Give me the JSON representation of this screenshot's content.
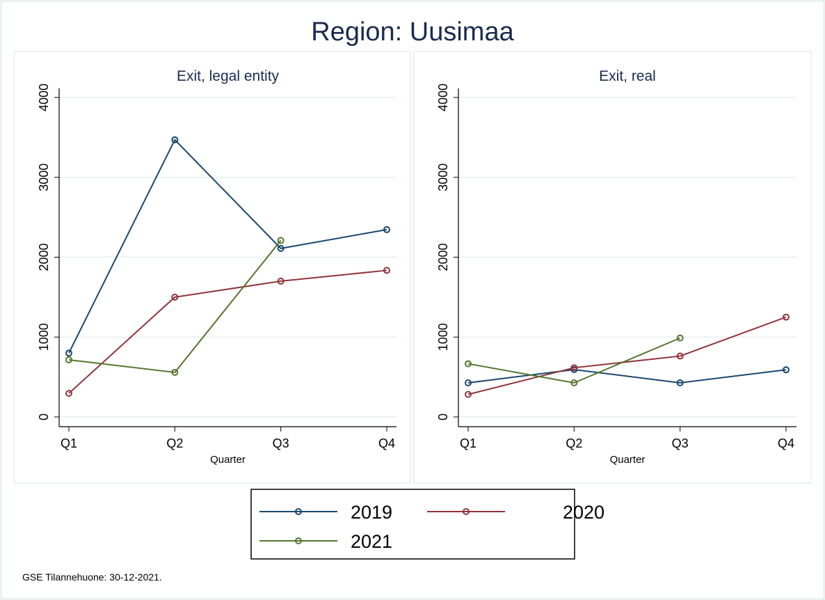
{
  "chart_data": [
    {
      "type": "line",
      "title": "Region: Uusimaa",
      "subtitle": "Exit, legal entity",
      "xlabel": "Quarter",
      "ylabel": "",
      "categories": [
        "Q1",
        "Q2",
        "Q3",
        "Q4"
      ],
      "ylim": [
        0,
        4000
      ],
      "yticks": [
        "0",
        "1000",
        "2000",
        "3000",
        "4000"
      ],
      "grid": true,
      "series": [
        {
          "name": "2019",
          "color": "#1a476f",
          "values": [
            800,
            3470,
            2110,
            2345
          ]
        },
        {
          "name": "2020",
          "color": "#90353b",
          "values": [
            295,
            1500,
            1700,
            1835
          ]
        },
        {
          "name": "2021",
          "color": "#55752f",
          "values": [
            715,
            558,
            2210,
            null
          ]
        }
      ]
    },
    {
      "type": "line",
      "subtitle": "Exit, real",
      "xlabel": "Quarter",
      "ylabel": "",
      "categories": [
        "Q1",
        "Q2",
        "Q3",
        "Q4"
      ],
      "ylim": [
        0,
        4000
      ],
      "yticks": [
        "0",
        "1000",
        "2000",
        "3000",
        "4000"
      ],
      "grid": true,
      "series": [
        {
          "name": "2019",
          "color": "#1a476f",
          "values": [
            427,
            593,
            427,
            590
          ]
        },
        {
          "name": "2020",
          "color": "#90353b",
          "values": [
            282,
            616,
            762,
            1250
          ]
        },
        {
          "name": "2021",
          "color": "#55752f",
          "values": [
            666,
            427,
            988,
            null
          ]
        }
      ]
    }
  ],
  "title": "Region: Uusimaa",
  "legend": {
    "placement": "bottom",
    "items": [
      "2019",
      "2020",
      "2021"
    ]
  },
  "footer": "GSE Tilannehuone: 30-12-2021."
}
